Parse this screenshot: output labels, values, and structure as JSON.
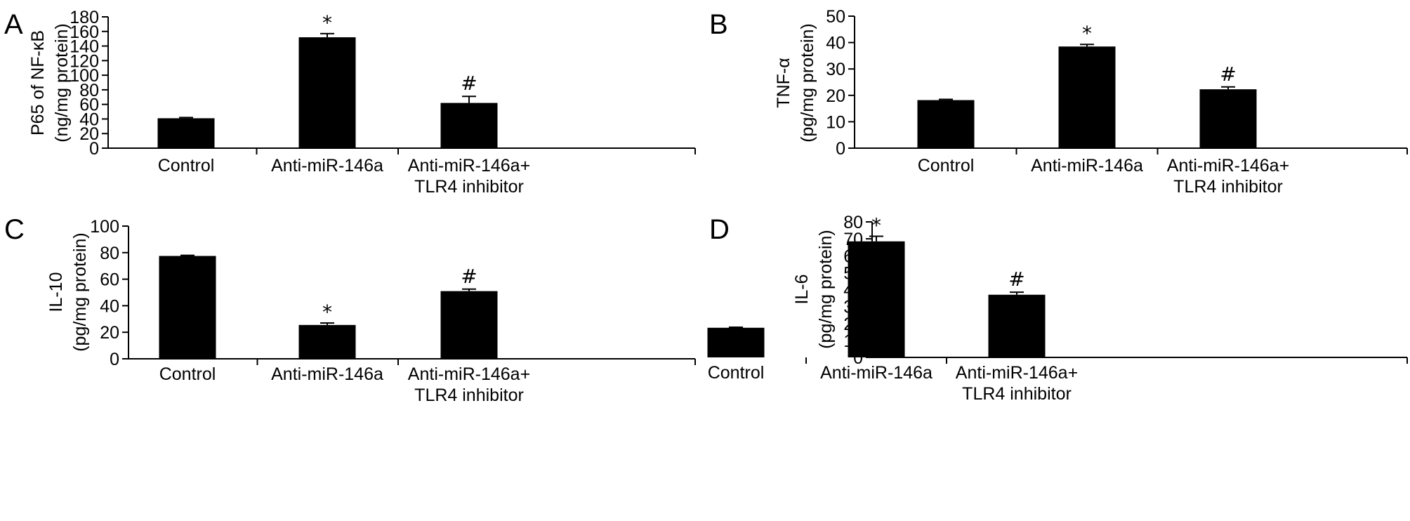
{
  "chart_data": [
    {
      "panel": "A",
      "type": "bar",
      "ylabel": [
        "P65 of NF-κB",
        "(ng/mg protein)"
      ],
      "categories": [
        [
          "Control"
        ],
        [
          "Anti-miR-146a"
        ],
        [
          "Anti-miR-146a+",
          "TLR4 inhibitor"
        ]
      ],
      "values": [
        41,
        152,
        62
      ],
      "errors": [
        1,
        5,
        9
      ],
      "marks": [
        "",
        "*",
        "#"
      ],
      "yticks": [
        0,
        20,
        40,
        60,
        80,
        100,
        120,
        140,
        160,
        180
      ],
      "ylim": [
        0,
        180
      ]
    },
    {
      "panel": "B",
      "type": "bar",
      "ylabel": [
        "TNF-α",
        "(pg/mg protein)"
      ],
      "categories": [
        [
          "Control"
        ],
        [
          "Anti-miR-146a"
        ],
        [
          "Anti-miR-146a+",
          "TLR4 inhibitor"
        ]
      ],
      "values": [
        18.2,
        38.5,
        22.3
      ],
      "errors": [
        0.3,
        0.8,
        0.9
      ],
      "marks": [
        "",
        "*",
        "#"
      ],
      "yticks": [
        0,
        10,
        20,
        30,
        40,
        50
      ],
      "ylim": [
        0,
        50
      ]
    },
    {
      "panel": "C",
      "type": "bar",
      "ylabel": [
        "IL-10",
        "(pg/mg protein)"
      ],
      "categories": [
        [
          "Control"
        ],
        [
          "Anti-miR-146a"
        ],
        [
          "Anti-miR-146a+",
          "TLR4 inhibitor"
        ]
      ],
      "values": [
        77.5,
        25.5,
        51
      ],
      "errors": [
        0.5,
        1.5,
        1.5
      ],
      "marks": [
        "",
        "*",
        "#"
      ],
      "yticks": [
        0,
        20,
        40,
        60,
        80,
        100
      ],
      "ylim": [
        0,
        100
      ]
    },
    {
      "panel": "D",
      "type": "bar",
      "ylabel": [
        "IL-6",
        "(pg/mg protein)"
      ],
      "categories": [
        [
          "Control"
        ],
        [
          "Anti-miR-146a"
        ],
        [
          "Anti-miR-146a+",
          "TLR4 inhibitor"
        ]
      ],
      "values": [
        17.5,
        68.5,
        37
      ],
      "errors": [
        0.3,
        3,
        1.5
      ],
      "marks": [
        "",
        "*",
        "#"
      ],
      "yticks": [
        0,
        10,
        20,
        30,
        40,
        50,
        60,
        70,
        80
      ],
      "ylim": [
        0,
        80
      ]
    }
  ],
  "colors": {
    "bar": "#000000",
    "axis": "#000000",
    "background": "#ffffff"
  }
}
